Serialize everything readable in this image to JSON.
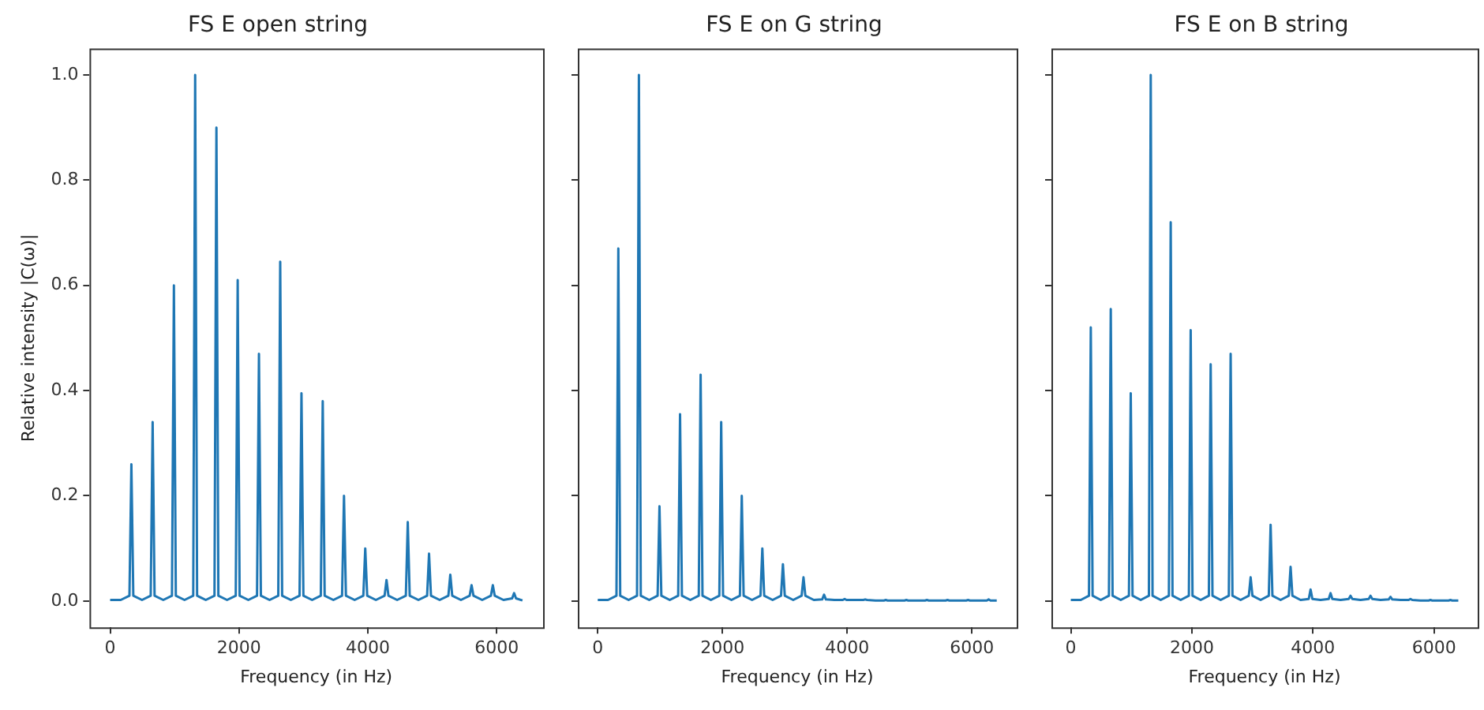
{
  "chart_data": [
    {
      "type": "line",
      "title": "FS E open string",
      "xlabel": "Frequency (in Hz)",
      "ylabel": "Relative intensity |C(ω)|",
      "x": [
        0,
        165,
        300,
        330,
        360,
        495,
        630,
        660,
        690,
        825,
        960,
        990,
        1020,
        1155,
        1290,
        1320,
        1350,
        1485,
        1620,
        1650,
        1680,
        1815,
        1950,
        1980,
        2010,
        2145,
        2280,
        2310,
        2340,
        2475,
        2610,
        2640,
        2670,
        2805,
        2940,
        2970,
        3000,
        3135,
        3270,
        3300,
        3330,
        3465,
        3600,
        3630,
        3660,
        3795,
        3930,
        3960,
        3990,
        4125,
        4260,
        4290,
        4320,
        4455,
        4590,
        4620,
        4650,
        4785,
        4920,
        4950,
        4980,
        5115,
        5250,
        5280,
        5310,
        5445,
        5580,
        5610,
        5640,
        5775,
        5910,
        5940,
        5970,
        6105,
        6240,
        6270,
        6300,
        6400
      ],
      "series": [
        {
          "color": "#1f77b4",
          "values": [
            0.002,
            0.002,
            0.01,
            0.26,
            0.01,
            0.002,
            0.01,
            0.34,
            0.01,
            0.002,
            0.01,
            0.6,
            0.01,
            0.002,
            0.01,
            1.0,
            0.01,
            0.002,
            0.01,
            0.9,
            0.01,
            0.002,
            0.01,
            0.61,
            0.01,
            0.002,
            0.01,
            0.47,
            0.01,
            0.002,
            0.01,
            0.645,
            0.01,
            0.002,
            0.01,
            0.395,
            0.01,
            0.002,
            0.01,
            0.38,
            0.01,
            0.002,
            0.01,
            0.2,
            0.01,
            0.002,
            0.01,
            0.1,
            0.01,
            0.002,
            0.01,
            0.04,
            0.01,
            0.002,
            0.01,
            0.15,
            0.01,
            0.002,
            0.01,
            0.09,
            0.01,
            0.002,
            0.01,
            0.05,
            0.01,
            0.002,
            0.01,
            0.03,
            0.01,
            0.002,
            0.01,
            0.03,
            0.01,
            0.002,
            0.005,
            0.015,
            0.005,
            0.001
          ]
        }
      ],
      "xlim": [
        -320,
        6720
      ],
      "xticks": [
        0,
        2000,
        4000,
        6000
      ],
      "ylim": [
        -0.05,
        1.05
      ],
      "yticks": [
        {
          "value": 0,
          "label": "0.0"
        },
        0.2,
        0.4,
        0.6,
        0.8,
        {
          "value": 1,
          "label": "1.0"
        }
      ],
      "grid": false
    },
    {
      "type": "line",
      "title": "FS E on G string",
      "xlabel": "Frequency (in Hz)",
      "x": [
        0,
        165,
        300,
        330,
        360,
        495,
        630,
        660,
        690,
        825,
        960,
        990,
        1020,
        1155,
        1290,
        1320,
        1350,
        1485,
        1620,
        1650,
        1680,
        1815,
        1950,
        1980,
        2010,
        2145,
        2280,
        2310,
        2340,
        2475,
        2610,
        2640,
        2670,
        2805,
        2940,
        2970,
        3000,
        3135,
        3270,
        3300,
        3330,
        3465,
        3600,
        3630,
        3660,
        3795,
        3930,
        3960,
        3990,
        4125,
        4260,
        4290,
        4320,
        4455,
        4590,
        4620,
        4650,
        4785,
        4920,
        4950,
        4980,
        5115,
        5250,
        5280,
        5310,
        5445,
        5580,
        5610,
        5640,
        5775,
        5910,
        5940,
        5970,
        6105,
        6240,
        6270,
        6300,
        6400
      ],
      "series": [
        {
          "color": "#1f77b4",
          "values": [
            0.002,
            0.002,
            0.01,
            0.67,
            0.01,
            0.002,
            0.01,
            1.0,
            0.01,
            0.002,
            0.01,
            0.18,
            0.01,
            0.002,
            0.01,
            0.355,
            0.01,
            0.002,
            0.01,
            0.43,
            0.01,
            0.002,
            0.01,
            0.34,
            0.01,
            0.002,
            0.01,
            0.2,
            0.01,
            0.002,
            0.01,
            0.1,
            0.01,
            0.002,
            0.01,
            0.07,
            0.01,
            0.002,
            0.01,
            0.045,
            0.01,
            0.002,
            0.003,
            0.012,
            0.003,
            0.002,
            0.002,
            0.004,
            0.002,
            0.002,
            0.002,
            0.003,
            0.002,
            0.001,
            0.001,
            0.002,
            0.001,
            0.001,
            0.001,
            0.002,
            0.001,
            0.001,
            0.001,
            0.002,
            0.001,
            0.001,
            0.001,
            0.002,
            0.001,
            0.001,
            0.001,
            0.002,
            0.001,
            0.001,
            0.001,
            0.003,
            0.001,
            0.001
          ]
        }
      ],
      "xlim": [
        -320,
        6720
      ],
      "xticks": [
        0,
        2000,
        4000,
        6000
      ],
      "ylim": [
        -0.05,
        1.05
      ],
      "yticks": [
        0,
        0.2,
        0.4,
        0.6,
        0.8,
        1.0
      ],
      "tick_labels": "x",
      "grid": false
    },
    {
      "type": "line",
      "title": "FS E on B string",
      "xlabel": "Frequency (in Hz)",
      "x": [
        0,
        165,
        300,
        330,
        360,
        495,
        630,
        660,
        690,
        825,
        960,
        990,
        1020,
        1155,
        1290,
        1320,
        1350,
        1485,
        1620,
        1650,
        1680,
        1815,
        1950,
        1980,
        2010,
        2145,
        2280,
        2310,
        2340,
        2475,
        2610,
        2640,
        2670,
        2805,
        2940,
        2970,
        3000,
        3135,
        3270,
        3300,
        3330,
        3465,
        3600,
        3630,
        3660,
        3795,
        3930,
        3960,
        3990,
        4125,
        4260,
        4290,
        4320,
        4455,
        4590,
        4620,
        4650,
        4785,
        4920,
        4950,
        4980,
        5115,
        5250,
        5280,
        5310,
        5445,
        5580,
        5610,
        5640,
        5775,
        5910,
        5940,
        5970,
        6105,
        6240,
        6270,
        6300,
        6400
      ],
      "series": [
        {
          "color": "#1f77b4",
          "values": [
            0.002,
            0.002,
            0.01,
            0.52,
            0.01,
            0.002,
            0.01,
            0.555,
            0.01,
            0.002,
            0.01,
            0.395,
            0.01,
            0.002,
            0.01,
            1.0,
            0.01,
            0.002,
            0.01,
            0.72,
            0.01,
            0.002,
            0.01,
            0.515,
            0.01,
            0.002,
            0.01,
            0.45,
            0.01,
            0.002,
            0.01,
            0.47,
            0.01,
            0.002,
            0.01,
            0.045,
            0.01,
            0.002,
            0.01,
            0.145,
            0.01,
            0.002,
            0.01,
            0.065,
            0.01,
            0.002,
            0.004,
            0.022,
            0.004,
            0.002,
            0.004,
            0.015,
            0.004,
            0.002,
            0.004,
            0.01,
            0.004,
            0.002,
            0.004,
            0.01,
            0.004,
            0.002,
            0.003,
            0.008,
            0.003,
            0.002,
            0.002,
            0.004,
            0.002,
            0.001,
            0.001,
            0.002,
            0.001,
            0.001,
            0.001,
            0.002,
            0.001,
            0.001
          ]
        }
      ],
      "xlim": [
        -320,
        6720
      ],
      "xticks": [
        0,
        2000,
        4000,
        6000
      ],
      "ylim": [
        -0.05,
        1.05
      ],
      "yticks": [
        0,
        0.2,
        0.4,
        0.6,
        0.8,
        1.0
      ],
      "tick_labels": "x",
      "grid": false
    }
  ]
}
